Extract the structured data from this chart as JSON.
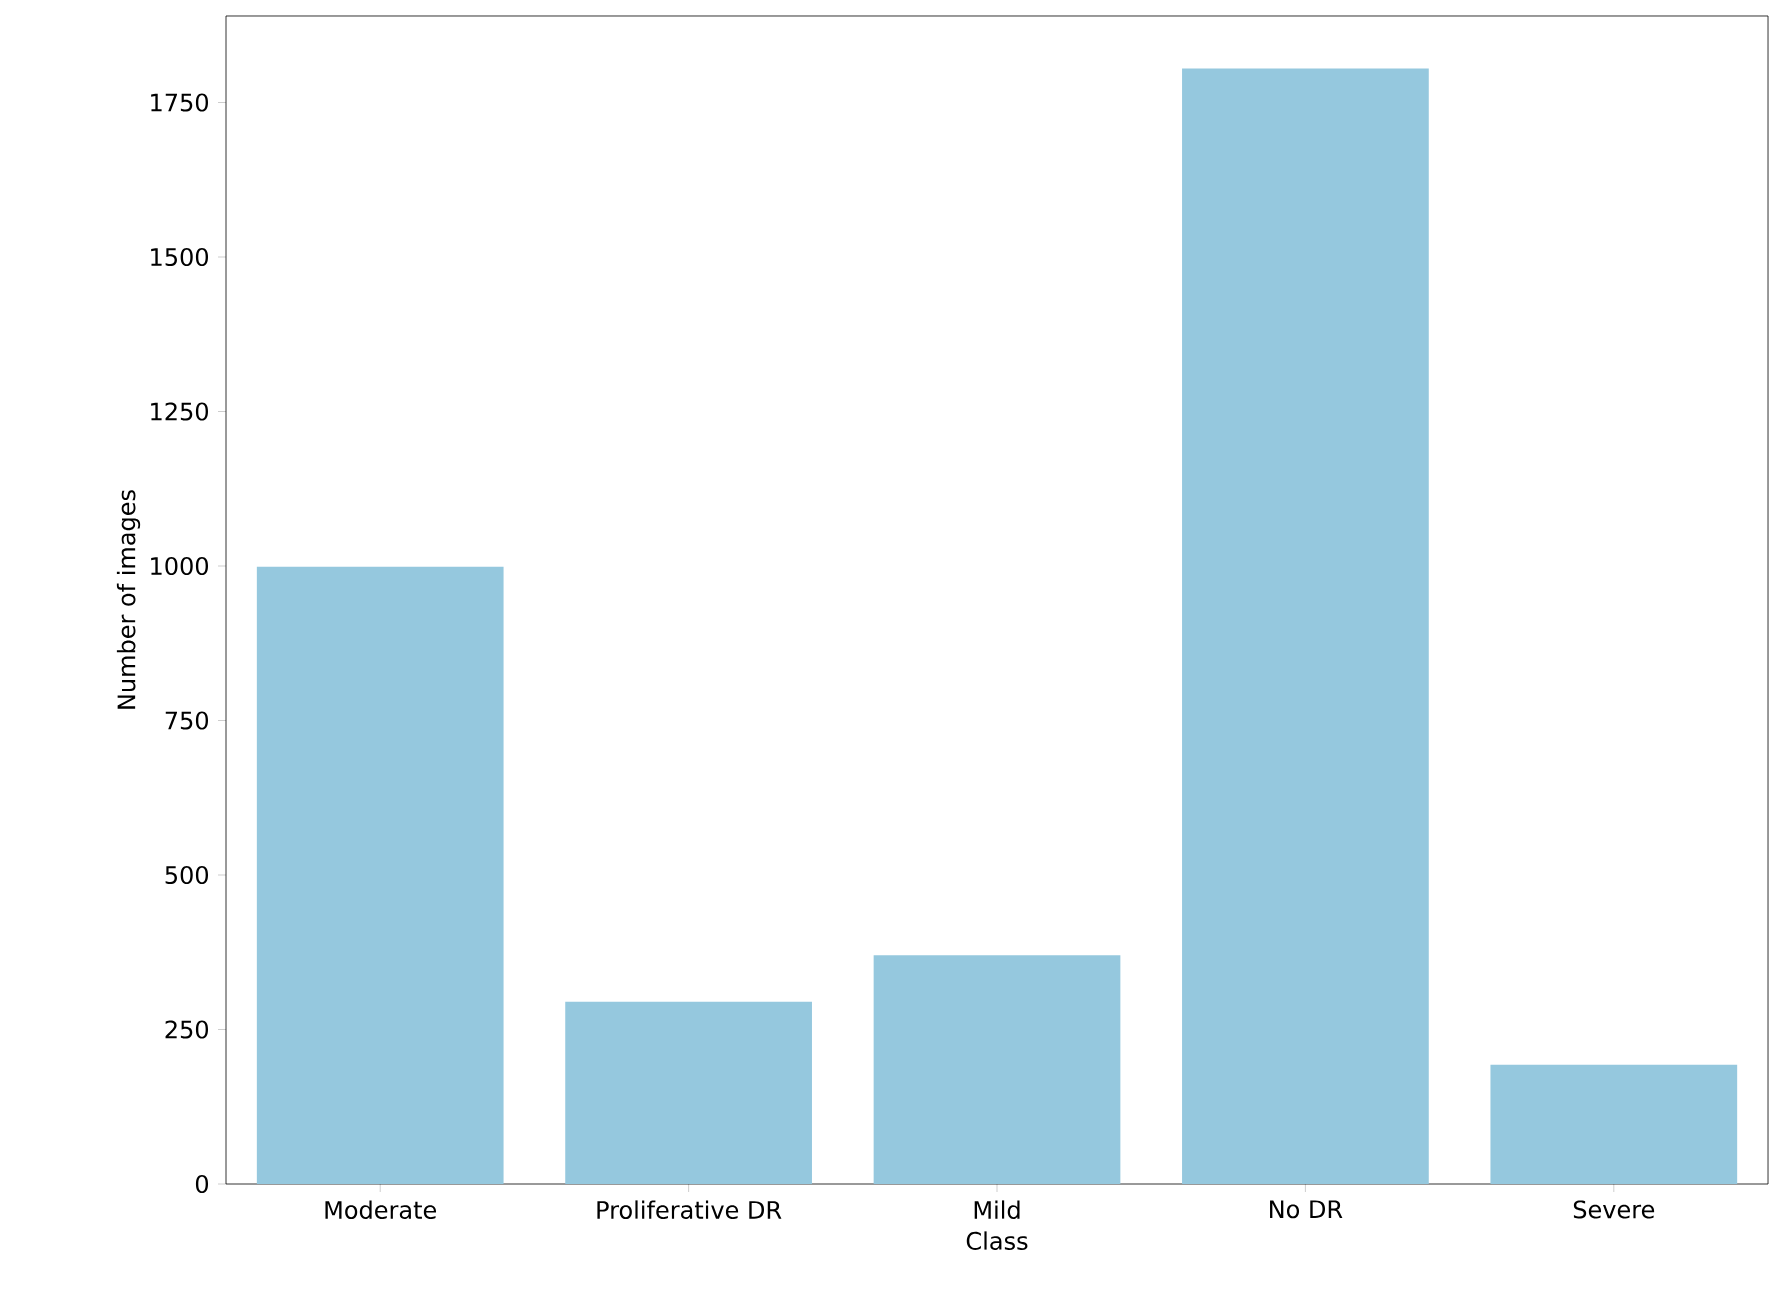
{
  "chart_data": {
    "type": "bar",
    "xlabel": "Class",
    "ylabel": "Number of images",
    "categories": [
      "Moderate",
      "Proliferative DR",
      "Mild",
      "No DR",
      "Severe"
    ],
    "values": [
      999,
      295,
      370,
      1805,
      193
    ],
    "color": "#95c8de",
    "ylim": [
      0,
      1890
    ],
    "yticks": [
      0,
      250,
      500,
      750,
      1000,
      1250,
      1500,
      1750
    ],
    "grid": false
  }
}
